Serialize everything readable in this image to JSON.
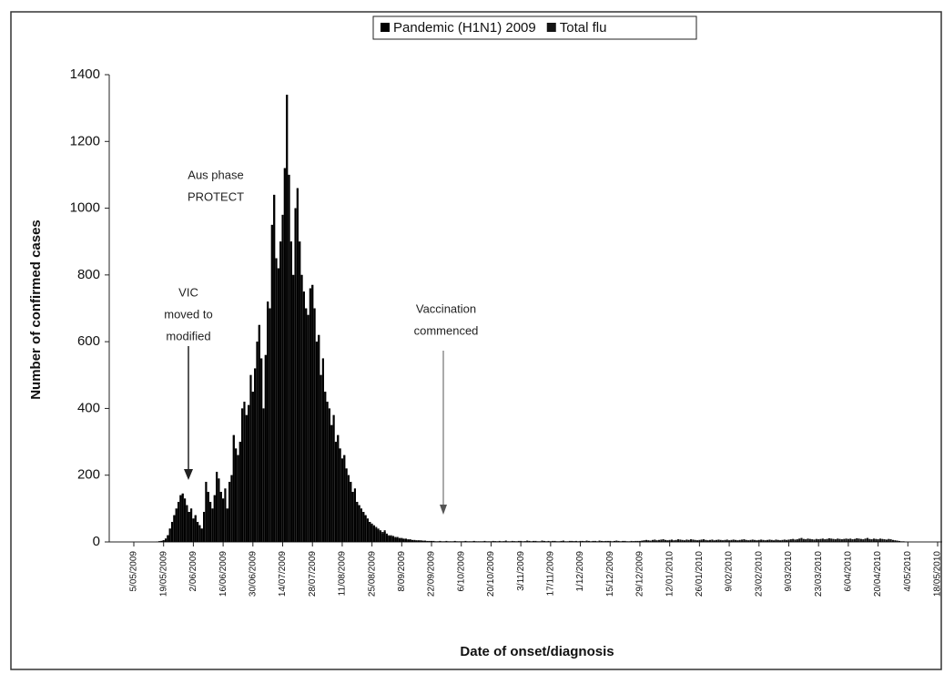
{
  "chart_data": {
    "type": "bar",
    "x_label": "Date of onset/diagnosis",
    "y_label": "Number of confirmed cases",
    "ylim": [
      0,
      1400
    ],
    "yticks": [
      0,
      200,
      400,
      600,
      800,
      1000,
      1200,
      1400
    ],
    "annotations": [
      {
        "lines": [
          "Aus phase",
          "PROTECT"
        ]
      },
      {
        "lines": [
          "VIC",
          "moved to",
          "modified"
        ]
      },
      {
        "lines": [
          "Vaccination",
          "commenced"
        ]
      }
    ],
    "categories": [
      "5/05/2009",
      null,
      null,
      null,
      null,
      null,
      null,
      null,
      null,
      null,
      null,
      null,
      null,
      null,
      "19/05/2009",
      null,
      null,
      null,
      null,
      null,
      null,
      null,
      null,
      null,
      null,
      null,
      null,
      null,
      "2/06/2009",
      null,
      null,
      null,
      null,
      null,
      null,
      null,
      null,
      null,
      null,
      null,
      null,
      null,
      "16/06/2009",
      null,
      null,
      null,
      null,
      null,
      null,
      null,
      null,
      null,
      null,
      null,
      null,
      null,
      "30/06/2009",
      null,
      null,
      null,
      null,
      null,
      null,
      null,
      null,
      null,
      null,
      null,
      null,
      null,
      "14/07/2009",
      null,
      null,
      null,
      null,
      null,
      null,
      null,
      null,
      null,
      null,
      null,
      null,
      null,
      "28/07/2009",
      null,
      null,
      null,
      null,
      null,
      null,
      null,
      null,
      null,
      null,
      null,
      null,
      null,
      "11/08/2009",
      null,
      null,
      null,
      null,
      null,
      null,
      null,
      null,
      null,
      null,
      null,
      null,
      null,
      "25/08/2009",
      null,
      null,
      null,
      null,
      null,
      null,
      null,
      null,
      null,
      null,
      null,
      null,
      null,
      "8/09/2009",
      null,
      null,
      null,
      null,
      null,
      null,
      null,
      null,
      null,
      null,
      null,
      null,
      null,
      "22/09/2009",
      null,
      null,
      null,
      null,
      null,
      null,
      null,
      null,
      null,
      null,
      null,
      null,
      null,
      "6/10/2009",
      null,
      null,
      null,
      null,
      null,
      null,
      null,
      null,
      null,
      null,
      null,
      null,
      null,
      "20/10/2009",
      null,
      null,
      null,
      null,
      null,
      null,
      null,
      null,
      null,
      null,
      null,
      null,
      null,
      "3/11/2009",
      null,
      null,
      null,
      null,
      null,
      null,
      null,
      null,
      null,
      null,
      null,
      null,
      null,
      "17/11/2009",
      null,
      null,
      null,
      null,
      null,
      null,
      null,
      null,
      null,
      null,
      null,
      null,
      null,
      "1/12/2009",
      null,
      null,
      null,
      null,
      null,
      null,
      null,
      null,
      null,
      null,
      null,
      null,
      null,
      "15/12/2009",
      null,
      null,
      null,
      null,
      null,
      null,
      null,
      null,
      null,
      null,
      null,
      null,
      null,
      "29/12/2009",
      null,
      null,
      null,
      null,
      null,
      null,
      null,
      null,
      null,
      null,
      null,
      null,
      null,
      "12/01/2010",
      null,
      null,
      null,
      null,
      null,
      null,
      null,
      null,
      null,
      null,
      null,
      null,
      null,
      "26/01/2010",
      null,
      null,
      null,
      null,
      null,
      null,
      null,
      null,
      null,
      null,
      null,
      null,
      null,
      "9/02/2010",
      null,
      null,
      null,
      null,
      null,
      null,
      null,
      null,
      null,
      null,
      null,
      null,
      null,
      "23/02/2010",
      null,
      null,
      null,
      null,
      null,
      null,
      null,
      null,
      null,
      null,
      null,
      null,
      null,
      "9/03/2010",
      null,
      null,
      null,
      null,
      null,
      null,
      null,
      null,
      null,
      null,
      null,
      null,
      null,
      "23/03/2010",
      null,
      null,
      null,
      null,
      null,
      null,
      null,
      null,
      null,
      null,
      null,
      null,
      null,
      "6/04/2010",
      null,
      null,
      null,
      null,
      null,
      null,
      null,
      null,
      null,
      null,
      null,
      null,
      null,
      "20/04/2010",
      null,
      null,
      null,
      null,
      null,
      null,
      null,
      null,
      null,
      null,
      null,
      null,
      null,
      "4/05/2010",
      null,
      null,
      null,
      null,
      null,
      null,
      null,
      null,
      null,
      null,
      null,
      null,
      null,
      "18/05/2010"
    ],
    "series": [
      {
        "name": "Pandemic (H1N1) 2009",
        "color": "#000000",
        "values": [
          0,
          0,
          0,
          0,
          0,
          0,
          0,
          0,
          0,
          0,
          0,
          1,
          2,
          3,
          5,
          10,
          20,
          40,
          60,
          80,
          100,
          120,
          140,
          145,
          130,
          110,
          90,
          100,
          70,
          80,
          60,
          50,
          40,
          90,
          180,
          150,
          120,
          100,
          140,
          210,
          190,
          150,
          130,
          160,
          100,
          180,
          200,
          320,
          280,
          260,
          300,
          400,
          420,
          380,
          410,
          500,
          450,
          520,
          600,
          650,
          550,
          400,
          560,
          720,
          700,
          950,
          1040,
          850,
          820,
          900,
          980,
          1120,
          1340,
          1100,
          900,
          800,
          1000,
          1060,
          900,
          800,
          750,
          700,
          680,
          760,
          770,
          700,
          600,
          620,
          500,
          550,
          450,
          420,
          400,
          350,
          380,
          300,
          320,
          280,
          250,
          260,
          220,
          200,
          180,
          150,
          160,
          120,
          110,
          100,
          90,
          80,
          70,
          60,
          50,
          45,
          40,
          35,
          30,
          25,
          30,
          20,
          18,
          16,
          15,
          12,
          12,
          10,
          10,
          8,
          8,
          6,
          6,
          5,
          4,
          4,
          4,
          3,
          3,
          3,
          2,
          2,
          2,
          2,
          1,
          1,
          2,
          1,
          1,
          2,
          1,
          1,
          1,
          2,
          1,
          1,
          1,
          1,
          2,
          1,
          1,
          1,
          2,
          1,
          1,
          1,
          1,
          2,
          1,
          1,
          1,
          1,
          2,
          1,
          1,
          1,
          2,
          1,
          1,
          1,
          1,
          2,
          1,
          1,
          1,
          1,
          2,
          1,
          1,
          1,
          2,
          1,
          1,
          1,
          1,
          2,
          1,
          1,
          1,
          1,
          2,
          1,
          1,
          1,
          2,
          1,
          1,
          1,
          1,
          2,
          1,
          1,
          1,
          1,
          2,
          1,
          1,
          1,
          2,
          1,
          1,
          1,
          1,
          2,
          1,
          1,
          1,
          1,
          2,
          1,
          1,
          1,
          2,
          1,
          1,
          1,
          1,
          2,
          1,
          1,
          1,
          2,
          1,
          1,
          2,
          1,
          1,
          2,
          1,
          1,
          2,
          1,
          1,
          2,
          1,
          2,
          1,
          1,
          2,
          1,
          1,
          2,
          1,
          1,
          2,
          1,
          1,
          2,
          1,
          2,
          1,
          1,
          2,
          1,
          1,
          2,
          1,
          1,
          2,
          1,
          1,
          2,
          1,
          2,
          1,
          1,
          2,
          1,
          1,
          2,
          1,
          1,
          2,
          1,
          1,
          2,
          1,
          2,
          1,
          1,
          2,
          1,
          1,
          2,
          1,
          1,
          2,
          1,
          1,
          2,
          1,
          2,
          1,
          1,
          2,
          1,
          1,
          2,
          1,
          1,
          2,
          1,
          1,
          2,
          1,
          2,
          1,
          1,
          2,
          1,
          1,
          2,
          1,
          1,
          2,
          1,
          1,
          2,
          1,
          2,
          1,
          1,
          2,
          1,
          1,
          2,
          1,
          1,
          2,
          1,
          1,
          2,
          1,
          2,
          1,
          1,
          1,
          1,
          1,
          1,
          1,
          1,
          1,
          0,
          0,
          0,
          0,
          0,
          0,
          0,
          0,
          0,
          0,
          0,
          0,
          0,
          0,
          0,
          0,
          0,
          0
        ]
      },
      {
        "name": "Total flu",
        "color": "#141414",
        "values": [
          0,
          0,
          0,
          0,
          0,
          0,
          0,
          0,
          0,
          0,
          0,
          1,
          2,
          3,
          5,
          10,
          20,
          40,
          60,
          80,
          100,
          120,
          140,
          145,
          130,
          110,
          90,
          100,
          70,
          80,
          60,
          50,
          40,
          90,
          180,
          150,
          120,
          100,
          140,
          210,
          190,
          150,
          130,
          160,
          100,
          180,
          200,
          320,
          280,
          260,
          300,
          400,
          420,
          380,
          410,
          500,
          450,
          520,
          600,
          650,
          550,
          400,
          560,
          720,
          700,
          950,
          1040,
          850,
          820,
          900,
          980,
          1120,
          1340,
          1100,
          900,
          800,
          1000,
          1060,
          900,
          800,
          750,
          700,
          680,
          760,
          770,
          700,
          600,
          620,
          500,
          550,
          450,
          420,
          400,
          350,
          380,
          300,
          320,
          280,
          250,
          260,
          220,
          200,
          180,
          150,
          160,
          120,
          110,
          100,
          90,
          80,
          70,
          60,
          55,
          50,
          45,
          40,
          35,
          30,
          35,
          25,
          20,
          20,
          18,
          15,
          15,
          12,
          12,
          10,
          10,
          8,
          8,
          6,
          6,
          5,
          5,
          5,
          4,
          4,
          3,
          3,
          3,
          3,
          2,
          2,
          3,
          2,
          2,
          3,
          2,
          2,
          2,
          3,
          2,
          2,
          2,
          2,
          3,
          2,
          2,
          2,
          3,
          2,
          2,
          2,
          2,
          3,
          2,
          2,
          2,
          3,
          2,
          2,
          3,
          2,
          2,
          4,
          2,
          2,
          3,
          2,
          2,
          3,
          3,
          2,
          2,
          4,
          3,
          2,
          3,
          3,
          2,
          2,
          4,
          3,
          2,
          3,
          2,
          3,
          3,
          2,
          2,
          3,
          4,
          2,
          2,
          3,
          3,
          2,
          3,
          2,
          3,
          3,
          2,
          4,
          3,
          2,
          3,
          3,
          2,
          4,
          3,
          2,
          3,
          3,
          3,
          2,
          3,
          4,
          3,
          2,
          3,
          3,
          2,
          2,
          3,
          2,
          3,
          3,
          3,
          4,
          5,
          6,
          5,
          4,
          6,
          7,
          5,
          6,
          7,
          8,
          6,
          5,
          6,
          7,
          5,
          6,
          8,
          7,
          6,
          5,
          7,
          6,
          8,
          7,
          6,
          5,
          6,
          7,
          8,
          6,
          5,
          6,
          7,
          5,
          6,
          7,
          6,
          5,
          6,
          7,
          5,
          6,
          7,
          6,
          5,
          6,
          7,
          8,
          6,
          5,
          6,
          7,
          6,
          5,
          6,
          7,
          6,
          5,
          6,
          7,
          6,
          5,
          7,
          6,
          5,
          6,
          7,
          6,
          7,
          8,
          9,
          7,
          8,
          10,
          12,
          9,
          8,
          10,
          9,
          8,
          7,
          9,
          8,
          9,
          10,
          8,
          9,
          11,
          10,
          9,
          8,
          10,
          9,
          8,
          9,
          10,
          9,
          10,
          8,
          9,
          11,
          10,
          9,
          8,
          10,
          12,
          9,
          8,
          10,
          9,
          8,
          10,
          9,
          8,
          7,
          9,
          8,
          6,
          5,
          4,
          3,
          2,
          2,
          1,
          0,
          0,
          0,
          0,
          0,
          0,
          0,
          0,
          0,
          0,
          0,
          0,
          0,
          0,
          0
        ]
      }
    ]
  }
}
